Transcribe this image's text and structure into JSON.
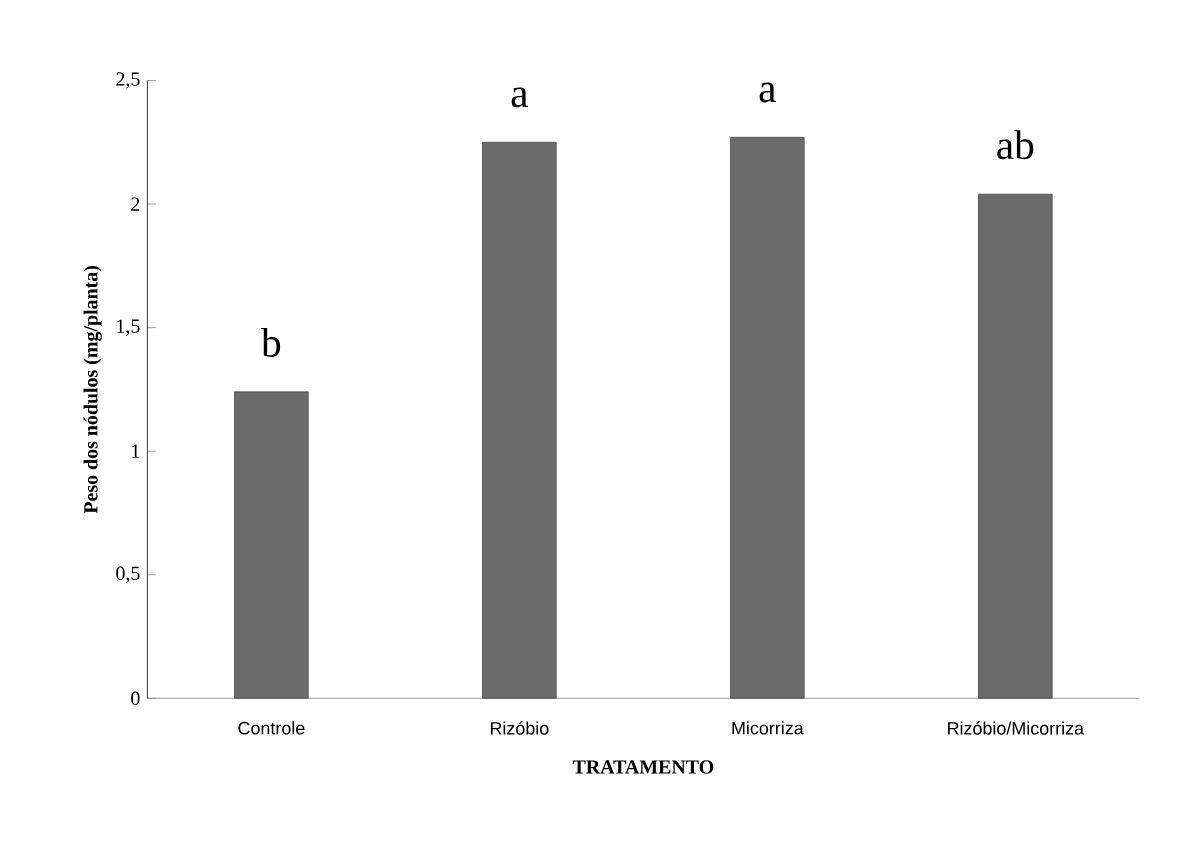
{
  "chart_data": {
    "type": "bar",
    "xlabel": "TRATAMENTO",
    "ylabel": "Peso dos nódulos (mg/planta)",
    "categories": [
      "Controle",
      "Rizóbio",
      "Micorriza",
      "Rizóbio/Micorriza"
    ],
    "values": [
      1.24,
      2.25,
      2.27,
      2.04
    ],
    "color": "#6b6b6b",
    "ylim": [
      0,
      2.5
    ],
    "yticks": [
      0,
      {
        "value": 0.5,
        "label": "0,5"
      },
      1,
      {
        "value": 1.5,
        "label": "1,5"
      },
      2,
      {
        "value": 2.5,
        "label": "2,5"
      }
    ],
    "grid": false,
    "annotations": [
      "b",
      "a",
      "a",
      "ab"
    ]
  }
}
